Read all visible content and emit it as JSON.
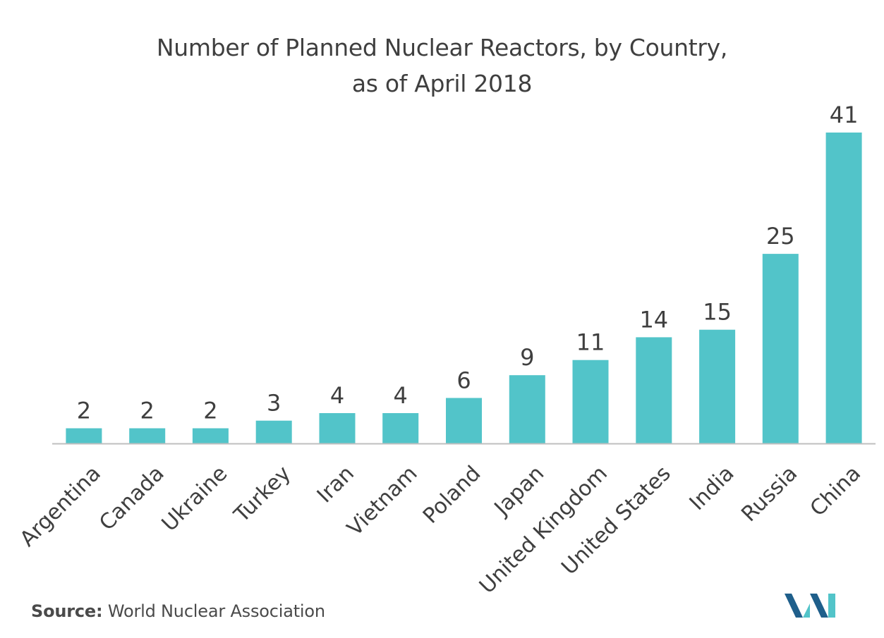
{
  "title_line_1": "Number of Planned Nuclear Reactors, by Country,",
  "title_line_2": "as of April 2018",
  "source_label": "Source:",
  "source_text": "World Nuclear Association",
  "colors": {
    "bar": "#52c4c9",
    "axis": "#bfbfbf",
    "text": "#3f3f3f",
    "logo_dark": "#1f5f8b",
    "logo_light": "#52c4c9"
  },
  "chart_data": {
    "type": "bar",
    "categories": [
      "Argentina",
      "Canada",
      "Ukraine",
      "Turkey",
      "Iran",
      "Vietnam",
      "Poland",
      "Japan",
      "United Kingdom",
      "United States",
      "India",
      "Russia",
      "China"
    ],
    "values": [
      2,
      2,
      2,
      3,
      4,
      4,
      6,
      9,
      11,
      14,
      15,
      25,
      41
    ],
    "title": "Number of Planned Nuclear Reactors, by Country, as of April 2018",
    "xlabel": "",
    "ylabel": "",
    "ylim": [
      0,
      41
    ],
    "grid": false,
    "legend": "none",
    "data_labels": true
  }
}
